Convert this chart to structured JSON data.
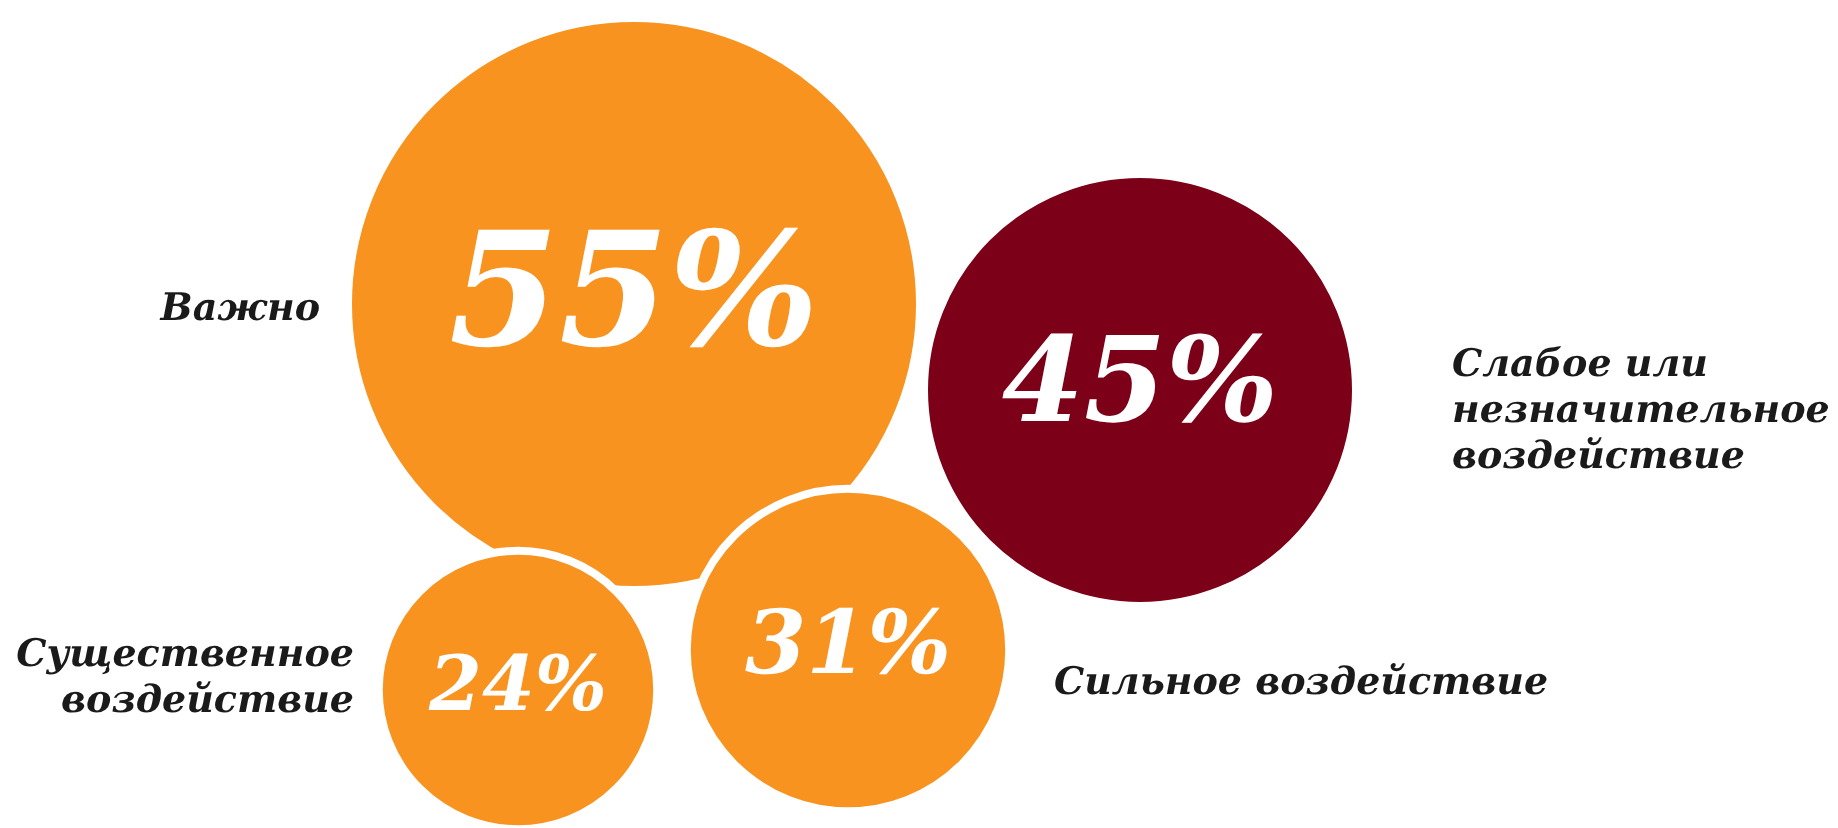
{
  "chart_data": {
    "type": "other",
    "categories": [
      "Важно",
      "Слабое или незначительное воздействие",
      "Существенное воздействие",
      "Сильное воздействие"
    ],
    "values": [
      55,
      45,
      24,
      31
    ],
    "colors": [
      "#f7931e",
      "#7d0019",
      "#f7931e",
      "#f7931e"
    ],
    "value_labels": [
      "55%",
      "45%",
      "24%",
      "31%"
    ]
  }
}
